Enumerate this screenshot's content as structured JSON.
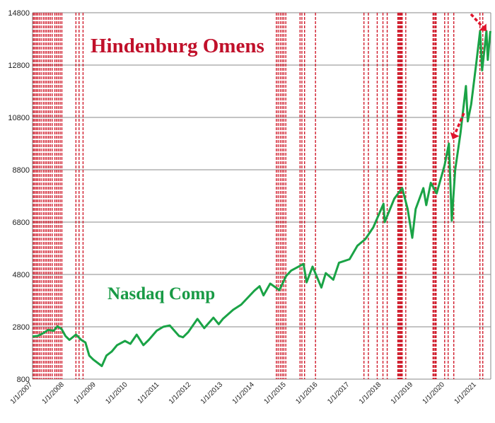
{
  "chart_data": {
    "type": "line",
    "title": "Hindenburg Omens",
    "title_color": "#c0102a",
    "grid": true,
    "ylim": [
      800,
      14800
    ],
    "yticks": [
      800,
      2800,
      4800,
      6800,
      8800,
      10800,
      12800,
      14800
    ],
    "xlim": [
      "2007-01-01",
      "2021-06-15"
    ],
    "xtick_labels": [
      "1/1/2007",
      "1/1/2008",
      "1/1/2009",
      "1/1/2010",
      "1/1/2011",
      "1/1/2012",
      "1/1/2013",
      "1/1/2014",
      "1/1/2015",
      "1/1/2016",
      "1/1/2017",
      "1/1/2018",
      "1/1/2019",
      "1/1/2020",
      "1/1/2021"
    ],
    "xtick_dates": [
      "2007-01-01",
      "2008-01-01",
      "2009-01-01",
      "2010-01-01",
      "2011-01-01",
      "2012-01-01",
      "2013-01-01",
      "2014-01-01",
      "2015-01-01",
      "2016-01-01",
      "2017-01-01",
      "2018-01-01",
      "2019-01-01",
      "2020-01-01",
      "2021-01-01"
    ],
    "series": [
      {
        "name": "Nasdaq Comp",
        "color": "#1aa346",
        "label_color": "#189a45",
        "points": [
          [
            "2007-01-01",
            2430
          ],
          [
            "2007-03-01",
            2450
          ],
          [
            "2007-05-01",
            2550
          ],
          [
            "2007-07-01",
            2680
          ],
          [
            "2007-09-01",
            2650
          ],
          [
            "2007-10-15",
            2820
          ],
          [
            "2007-12-01",
            2720
          ],
          [
            "2008-01-15",
            2450
          ],
          [
            "2008-03-01",
            2300
          ],
          [
            "2008-05-15",
            2500
          ],
          [
            "2008-07-15",
            2300
          ],
          [
            "2008-09-01",
            2200
          ],
          [
            "2008-10-15",
            1700
          ],
          [
            "2008-12-01",
            1550
          ],
          [
            "2009-03-09",
            1300
          ],
          [
            "2009-05-01",
            1700
          ],
          [
            "2009-07-01",
            1850
          ],
          [
            "2009-09-01",
            2100
          ],
          [
            "2009-12-01",
            2260
          ],
          [
            "2010-02-01",
            2150
          ],
          [
            "2010-04-15",
            2500
          ],
          [
            "2010-07-01",
            2100
          ],
          [
            "2010-09-01",
            2300
          ],
          [
            "2010-12-01",
            2650
          ],
          [
            "2011-02-15",
            2800
          ],
          [
            "2011-05-01",
            2850
          ],
          [
            "2011-08-15",
            2450
          ],
          [
            "2011-10-01",
            2400
          ],
          [
            "2011-12-01",
            2600
          ],
          [
            "2012-03-15",
            3100
          ],
          [
            "2012-06-01",
            2750
          ],
          [
            "2012-09-15",
            3150
          ],
          [
            "2012-11-15",
            2900
          ],
          [
            "2013-01-01",
            3100
          ],
          [
            "2013-05-01",
            3450
          ],
          [
            "2013-08-01",
            3650
          ],
          [
            "2013-12-31",
            4180
          ],
          [
            "2014-03-01",
            4350
          ],
          [
            "2014-04-15",
            4000
          ],
          [
            "2014-07-01",
            4450
          ],
          [
            "2014-10-15",
            4200
          ],
          [
            "2014-12-31",
            4740
          ],
          [
            "2015-03-01",
            4950
          ],
          [
            "2015-07-20",
            5200
          ],
          [
            "2015-08-25",
            4500
          ],
          [
            "2015-11-01",
            5100
          ],
          [
            "2016-02-11",
            4300
          ],
          [
            "2016-04-01",
            4850
          ],
          [
            "2016-06-27",
            4600
          ],
          [
            "2016-09-01",
            5250
          ],
          [
            "2016-12-31",
            5380
          ],
          [
            "2017-04-01",
            5900
          ],
          [
            "2017-07-01",
            6150
          ],
          [
            "2017-10-01",
            6600
          ],
          [
            "2018-01-26",
            7500
          ],
          [
            "2018-02-09",
            6800
          ],
          [
            "2018-06-01",
            7700
          ],
          [
            "2018-08-30",
            8100
          ],
          [
            "2018-11-01",
            7300
          ],
          [
            "2018-12-24",
            6200
          ],
          [
            "2019-02-01",
            7300
          ],
          [
            "2019-05-01",
            8100
          ],
          [
            "2019-06-03",
            7450
          ],
          [
            "2019-07-25",
            8300
          ],
          [
            "2019-10-01",
            7900
          ],
          [
            "2019-12-31",
            8970
          ],
          [
            "2020-02-19",
            9800
          ],
          [
            "2020-03-23",
            6860
          ],
          [
            "2020-05-01",
            8800
          ],
          [
            "2020-07-01",
            10200
          ],
          [
            "2020-09-02",
            12000
          ],
          [
            "2020-09-23",
            10650
          ],
          [
            "2020-11-01",
            11300
          ],
          [
            "2020-12-31",
            12890
          ],
          [
            "2021-02-12",
            14100
          ],
          [
            "2021-03-08",
            12600
          ],
          [
            "2021-04-26",
            14100
          ],
          [
            "2021-05-12",
            13000
          ],
          [
            "2021-06-10",
            14100
          ]
        ]
      }
    ],
    "omen_dates": [
      "2007-01-10",
      "2007-01-25",
      "2007-02-12",
      "2007-03-01",
      "2007-03-20",
      "2007-04-10",
      "2007-05-05",
      "2007-05-25",
      "2007-06-15",
      "2007-07-05",
      "2007-07-25",
      "2007-08-15",
      "2007-09-15",
      "2007-10-05",
      "2007-10-25",
      "2007-11-15",
      "2007-12-05",
      "2008-05-15",
      "2008-06-20",
      "2008-08-05",
      "2014-09-10",
      "2014-10-01",
      "2014-10-25",
      "2014-11-15",
      "2014-12-05",
      "2014-12-28",
      "2015-06-10",
      "2015-07-01",
      "2015-08-01",
      "2015-12-05",
      "2017-06-15",
      "2017-08-05",
      "2017-11-15",
      "2018-01-20",
      "2018-03-10",
      "2018-07-10",
      "2018-07-20",
      "2018-08-01",
      "2018-08-10",
      "2018-08-20",
      "2018-08-30",
      "2018-10-10",
      "2019-08-20",
      "2019-09-01",
      "2019-09-15",
      "2019-09-25",
      "2020-01-01",
      "2020-02-10",
      "2020-04-15",
      "2021-02-10",
      "2021-03-15"
    ],
    "omen_color": "#d01c2c",
    "arrow_color": "#e0142c"
  }
}
